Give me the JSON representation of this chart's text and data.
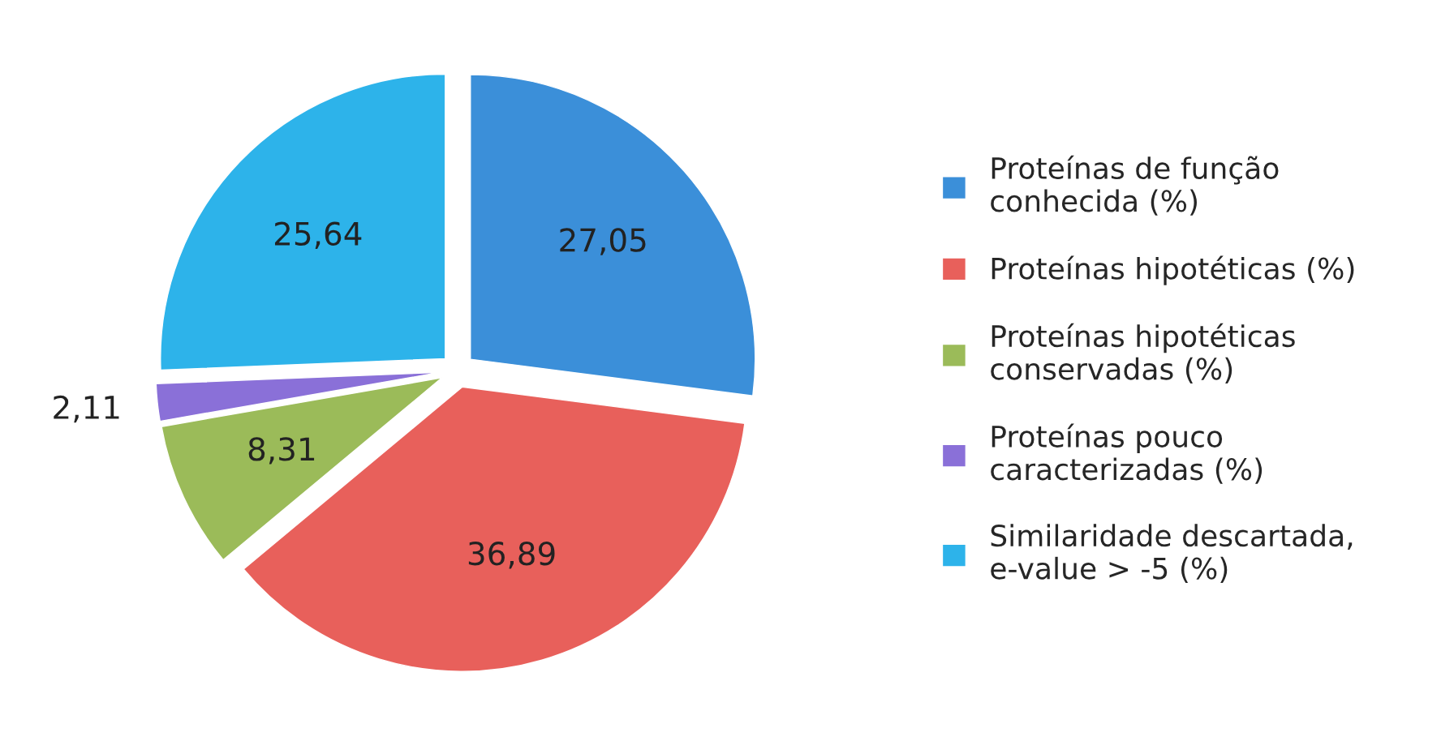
{
  "chart_data": {
    "type": "pie",
    "categories": [
      "Proteínas de função\nconhecida (%)",
      "Proteínas hipotéticas (%)",
      "Proteínas hipotéticas\nconservadas (%)",
      "Proteínas pouco\ncaracterizadas (%)",
      "Similaridade descartada,\ne-value > -5 (%)"
    ],
    "values": [
      27.05,
      36.89,
      8.31,
      2.11,
      25.64
    ],
    "value_labels": [
      "27,05",
      "36,89",
      "8,31",
      "2,11",
      "25,64"
    ],
    "colors": [
      "#3b8fd9",
      "#e8605b",
      "#9bbb59",
      "#8a70d8",
      "#2db3ea"
    ],
    "legend": "right"
  }
}
